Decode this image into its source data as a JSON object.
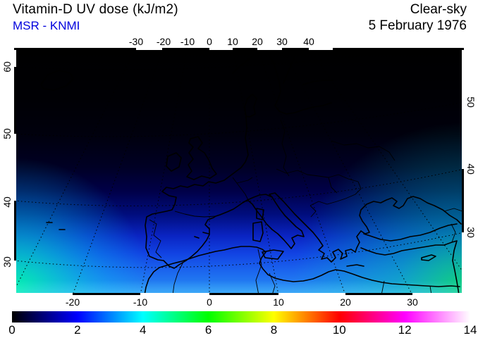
{
  "header": {
    "title": "Vitamin-D UV dose (kJ/m2)",
    "source": "MSR - KNMI",
    "source_color": "#0000dd",
    "condition": "Clear-sky",
    "date": "5 February 1976"
  },
  "chart_data": {
    "type": "heatmap",
    "title": "Vitamin-D UV dose (kJ/m2)",
    "subtitle": "MSR - KNMI",
    "condition": "Clear-sky",
    "date": "5 February 1976",
    "region": "Europe, North Africa and Mediterranean",
    "projection": "perspective-style view; meridians converge toward the top of the map",
    "grid": "dotted black graticule every 10 degrees",
    "axes": {
      "top_lon_ticks": [
        "-30",
        "-20",
        "-10",
        "0",
        "10",
        "20",
        "30",
        "40"
      ],
      "bottom_lon_ticks": [
        "-20",
        "-10",
        "0",
        "10",
        "20",
        "30"
      ],
      "left_lat_ticks": [
        "60",
        "50",
        "40",
        "30"
      ],
      "right_lat_ticks": [
        "50",
        "40",
        "30"
      ]
    },
    "colorbar": {
      "unit": "kJ/m2",
      "min": 0,
      "max": 14,
      "ticks": [
        "0",
        "2",
        "4",
        "6",
        "8",
        "10",
        "12",
        "14"
      ],
      "stops": [
        {
          "value": 0,
          "color": "#000000"
        },
        {
          "value": 2,
          "color": "#0000ff"
        },
        {
          "value": 4,
          "color": "#00ffff"
        },
        {
          "value": 6,
          "color": "#00ff00"
        },
        {
          "value": 8,
          "color": "#ffff00"
        },
        {
          "value": 10,
          "color": "#ff0000"
        },
        {
          "value": 12,
          "color": "#ff00ff"
        },
        {
          "value": 14,
          "color": "#ffffff"
        }
      ]
    },
    "field_summary": {
      "description": "Clear-sky vitamin-D weighted UV dose in February: near 0 kJ/m2 (black) above ~55N, rising southward through dark blue (~1) around 45-50N, blue (~2) near 40N, bright blue (~3) near 35N, cyan (~4) near 30N, and green (~5-6) at the southern map edge; brightest (green) in the southwest and southeast corners.",
      "lat_profile": [
        {
          "lat": 60,
          "uv_dose": 0.1
        },
        {
          "lat": 55,
          "uv_dose": 0.3
        },
        {
          "lat": 50,
          "uv_dose": 0.7
        },
        {
          "lat": 45,
          "uv_dose": 1.2
        },
        {
          "lat": 40,
          "uv_dose": 2.0
        },
        {
          "lat": 35,
          "uv_dose": 3.0
        },
        {
          "lat": 30,
          "uv_dose": 4.2
        },
        {
          "lat": 27,
          "uv_dose": 5.5
        }
      ]
    }
  }
}
